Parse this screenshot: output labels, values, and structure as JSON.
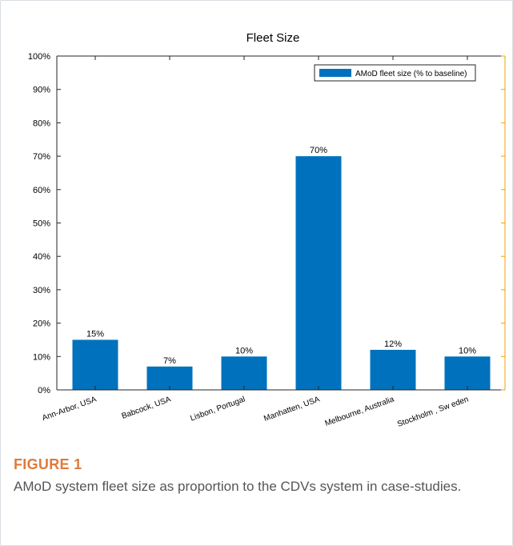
{
  "figure": {
    "label": "FIGURE 1",
    "caption": "AMoD system fleet size as proportion to the CDVs system in case-studies."
  },
  "chart_data": {
    "type": "bar",
    "title": "Fleet Size",
    "xlabel": "",
    "ylabel": "",
    "categories": [
      "Ann-Arbor, USA",
      "Babcock, USA",
      "Lisbon, Portugal",
      "Manhatten, USA",
      "Melbourne,   Australia",
      "Stockholm  , Sw eden"
    ],
    "series": [
      {
        "name": "AMoD fleet size (% to baseline)",
        "values": [
          15,
          7,
          10,
          70,
          12,
          10
        ],
        "color": "#0072bd"
      }
    ],
    "data_labels": [
      "15%",
      "7%",
      "10%",
      "70%",
      "12%",
      "10%"
    ],
    "ylim": [
      0,
      100
    ],
    "yticks": [
      0,
      10,
      20,
      30,
      40,
      50,
      60,
      70,
      80,
      90,
      100
    ],
    "ytick_labels": [
      "0%",
      "10%",
      "20%",
      "30%",
      "40%",
      "50%",
      "60%",
      "70%",
      "80%",
      "90%",
      "100%"
    ],
    "grid": false,
    "legend_position": "top-right",
    "axis_colors": {
      "left_bottom": "#262626",
      "right": "#f0a300"
    }
  }
}
